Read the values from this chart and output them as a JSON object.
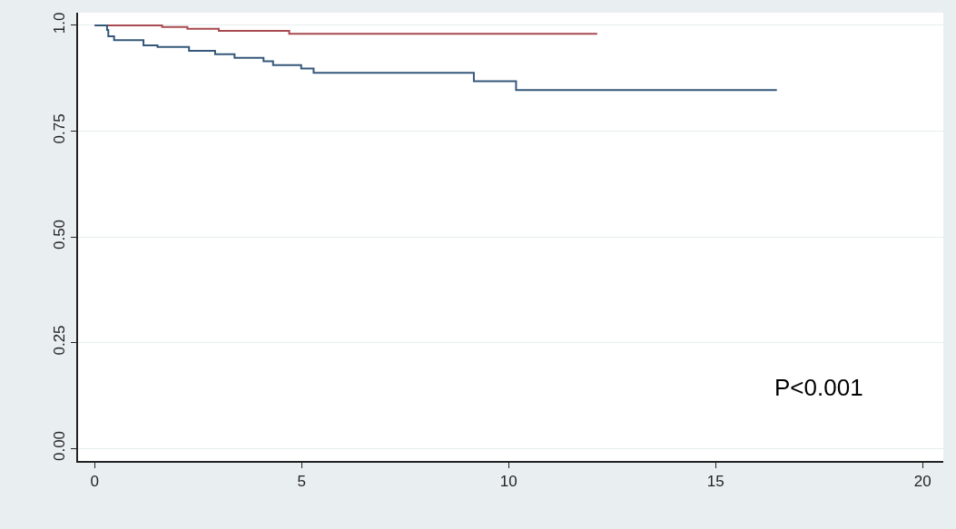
{
  "chart_data": {
    "type": "step",
    "xlim": [
      -0.4,
      20.5
    ],
    "ylim": [
      -0.03,
      1.03
    ],
    "xticks": [
      0,
      5,
      10,
      15,
      20
    ],
    "yticks": [
      {
        "value": 0,
        "label": "0.00"
      },
      {
        "value": 0.25,
        "label": "0.25"
      },
      {
        "value": 0.5,
        "label": "0.50"
      },
      {
        "value": 0.75,
        "label": "0.75"
      },
      {
        "value": 1,
        "label": "1.0"
      }
    ],
    "grid": "y",
    "line_style": "solid",
    "annotations": [
      "P<0.001"
    ],
    "series": [
      {
        "color": "#a84a50",
        "x": [
          0,
          1.63,
          2.24,
          3.0,
          4.7,
          12.14
        ],
        "values": [
          1.0,
          0.996,
          0.992,
          0.987,
          0.98,
          0.98
        ]
      },
      {
        "color": "#34587a",
        "x": [
          0,
          0.3,
          0.33,
          0.47,
          1.18,
          1.52,
          2.28,
          2.91,
          3.38,
          4.08,
          4.31,
          4.99,
          5.29,
          9.16,
          10.18,
          16.48
        ],
        "values": [
          1.0,
          0.989,
          0.974,
          0.965,
          0.953,
          0.949,
          0.94,
          0.932,
          0.923,
          0.915,
          0.906,
          0.898,
          0.888,
          0.868,
          0.847,
          0.847
        ]
      }
    ]
  }
}
